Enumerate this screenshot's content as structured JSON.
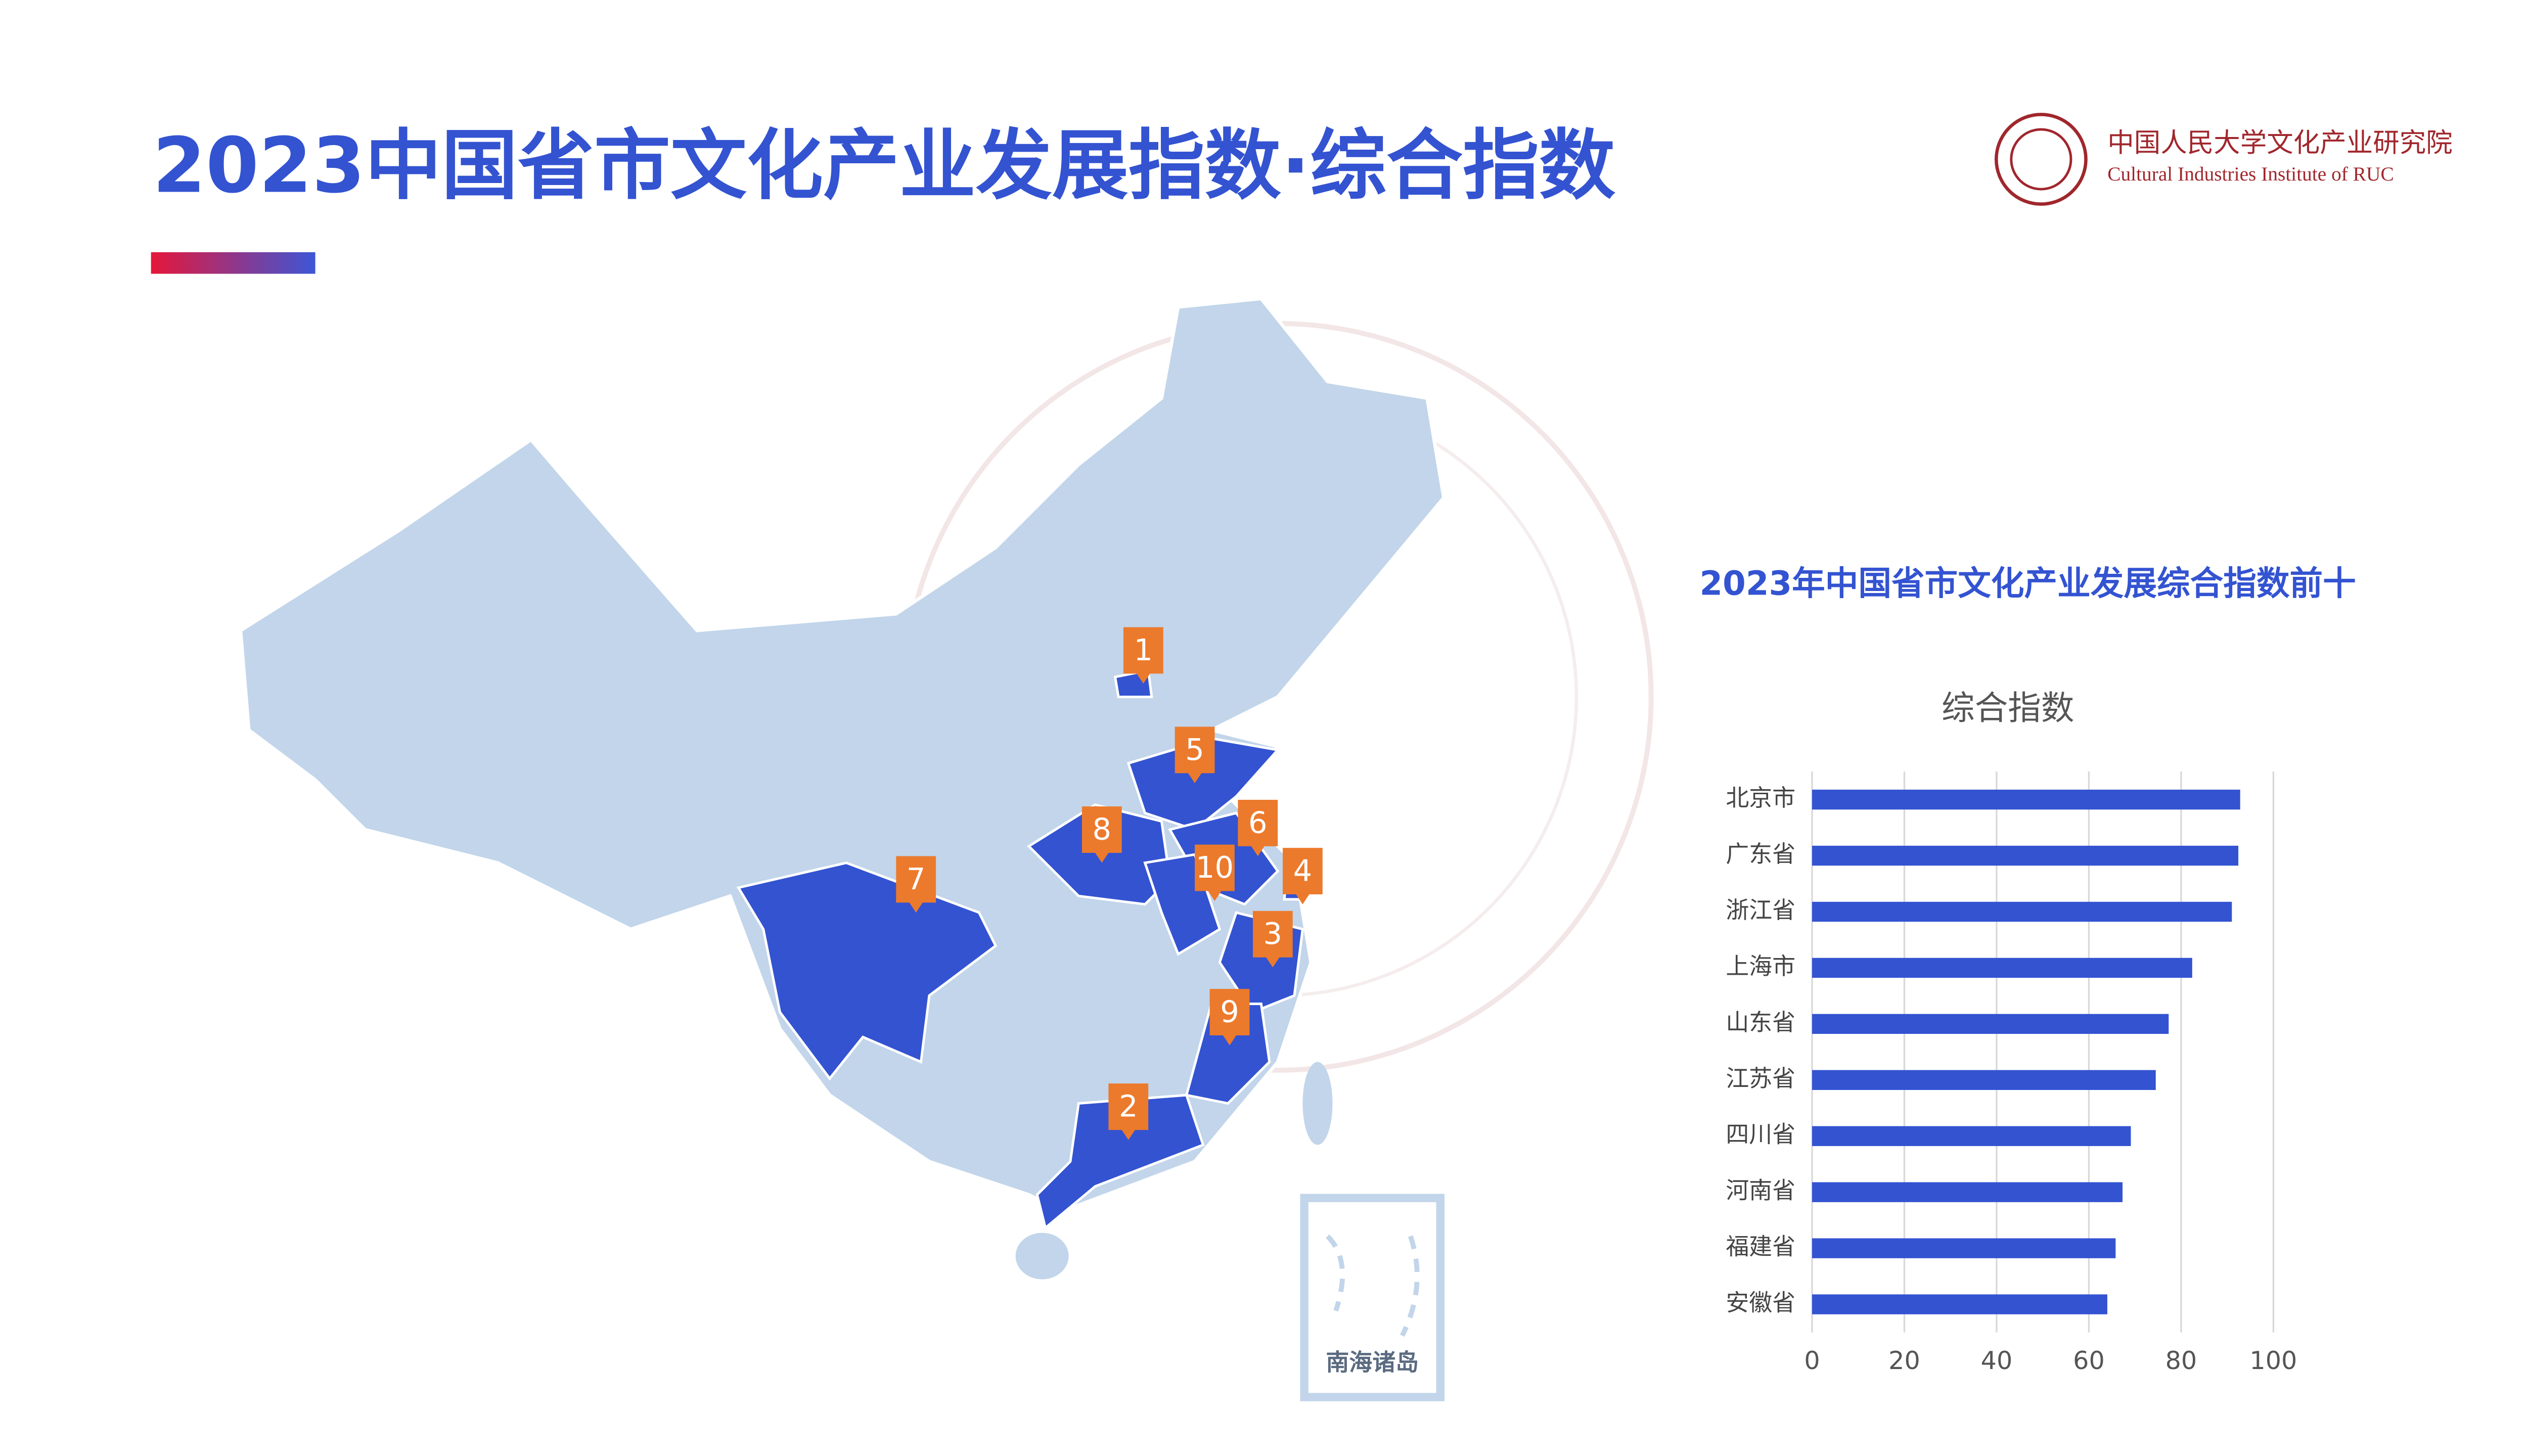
{
  "header": {
    "title": "2023中国省市文化产业发展指数·综合指数",
    "logo_cn": "中国人民大学文化产业研究院",
    "logo_en": "Cultural Industries Institute of RUC"
  },
  "map": {
    "markers": [
      "1",
      "2",
      "3",
      "4",
      "5",
      "6",
      "7",
      "8",
      "9",
      "10"
    ],
    "inset_label": "南海诸岛"
  },
  "chart_data": {
    "type": "bar",
    "orientation": "horizontal",
    "title": "2023年中国省市文化产业发展综合指数前十",
    "categories": [
      "北京市",
      "广东省",
      "浙江省",
      "上海市",
      "山东省",
      "江苏省",
      "四川省",
      "河南省",
      "福建省",
      "安徽省"
    ],
    "series": [
      {
        "name": "综合指数",
        "color": "#3353d1",
        "values": [
          92.8,
          92.4,
          91.0,
          82.4,
          77.3,
          74.5,
          69.1,
          67.3,
          65.8,
          64.0
        ]
      }
    ],
    "xlim": [
      0,
      100
    ],
    "xticks": [
      0,
      20,
      40,
      60,
      80,
      100
    ],
    "grid": true
  }
}
